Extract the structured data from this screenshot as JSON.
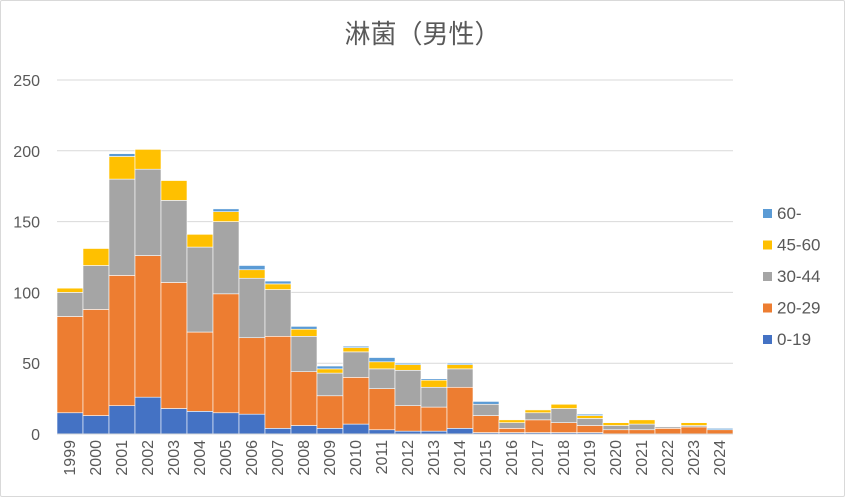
{
  "chart_data": {
    "type": "bar",
    "stacked": true,
    "title": "淋菌（男性）",
    "xlabel": "",
    "ylabel": "",
    "ylim": [
      0,
      250
    ],
    "yticks": [
      0,
      50,
      100,
      150,
      200,
      250
    ],
    "grid": true,
    "legend_position": "right",
    "categories": [
      "1999",
      "2000",
      "2001",
      "2002",
      "2003",
      "2004",
      "2005",
      "2006",
      "2007",
      "2008",
      "2009",
      "2010",
      "2011",
      "2012",
      "2013",
      "2014",
      "2015",
      "2016",
      "2017",
      "2018",
      "2019",
      "2020",
      "2021",
      "2022",
      "2023",
      "2024"
    ],
    "series": [
      {
        "name": "0-19",
        "color": "#4472c4",
        "values": [
          15,
          13,
          20,
          26,
          18,
          16,
          15,
          14,
          4,
          6,
          4,
          7,
          3,
          2,
          2,
          4,
          1,
          1,
          1,
          1,
          1,
          0,
          0,
          0,
          0,
          0
        ]
      },
      {
        "name": "20-29",
        "color": "#ed7d31",
        "values": [
          68,
          75,
          92,
          100,
          89,
          56,
          84,
          54,
          65,
          38,
          23,
          33,
          29,
          18,
          17,
          29,
          12,
          3,
          9,
          7,
          5,
          3,
          3,
          4,
          5,
          3
        ]
      },
      {
        "name": "30-44",
        "color": "#a5a5a5",
        "values": [
          17,
          31,
          68,
          61,
          58,
          60,
          51,
          42,
          33,
          25,
          16,
          18,
          14,
          25,
          14,
          13,
          8,
          4,
          5,
          10,
          5,
          3,
          4,
          1,
          1,
          0
        ]
      },
      {
        "name": "45-60",
        "color": "#ffc000",
        "values": [
          3,
          12,
          16,
          14,
          14,
          9,
          7,
          6,
          4,
          5,
          3,
          3,
          5,
          4,
          5,
          3,
          0,
          2,
          2,
          3,
          2,
          2,
          3,
          0,
          2,
          0
        ]
      },
      {
        "name": "60-",
        "color": "#5b9bd5",
        "values": [
          0,
          0,
          2,
          0,
          0,
          0,
          2,
          3,
          2,
          2,
          2,
          1,
          3,
          1,
          1,
          1,
          2,
          0,
          0,
          0,
          1,
          0,
          0,
          0,
          0,
          1
        ]
      }
    ],
    "legend_order": [
      "60-",
      "45-60",
      "30-44",
      "20-29",
      "0-19"
    ]
  }
}
